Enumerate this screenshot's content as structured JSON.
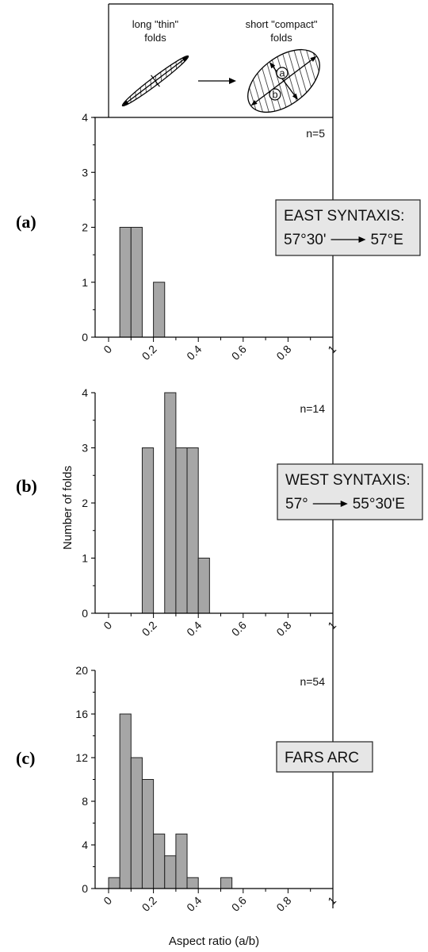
{
  "y_axis_title": "Number of folds",
  "x_axis_title": "Aspect ratio (a/b)",
  "inset": {
    "left_label_line1": "long \"thin\"",
    "left_label_line2": "folds",
    "right_label_line1": "short \"compact\"",
    "right_label_line2": "folds",
    "marker_a": "a",
    "marker_b": "b"
  },
  "chart_data": [
    {
      "type": "bar",
      "panel_label": "(a)",
      "n_label": "n=5",
      "region_line1": "EAST SYNTAXIS:",
      "region_from": "57°30'",
      "region_to": "57°E",
      "bin_width": 0.05,
      "bins": [
        {
          "x0": 0.05,
          "count": 2
        },
        {
          "x0": 0.1,
          "count": 2
        },
        {
          "x0": 0.15,
          "count": 0
        },
        {
          "x0": 0.2,
          "count": 1
        }
      ],
      "xlim": [
        0,
        1
      ],
      "ylim": [
        0,
        4
      ],
      "yticks": [
        0,
        1,
        2,
        3,
        4
      ],
      "xticks": [
        "0",
        "0.2",
        "0.4",
        "0.6",
        "0.8",
        "1"
      ]
    },
    {
      "type": "bar",
      "panel_label": "(b)",
      "n_label": "n=14",
      "region_line1": "WEST SYNTAXIS:",
      "region_from": "57°",
      "region_to": "55°30'E",
      "bin_width": 0.05,
      "bins": [
        {
          "x0": 0.15,
          "count": 3
        },
        {
          "x0": 0.2,
          "count": 0
        },
        {
          "x0": 0.25,
          "count": 4
        },
        {
          "x0": 0.3,
          "count": 3
        },
        {
          "x0": 0.35,
          "count": 3
        },
        {
          "x0": 0.4,
          "count": 1
        }
      ],
      "xlim": [
        0,
        1
      ],
      "ylim": [
        0,
        4
      ],
      "yticks": [
        0,
        1,
        2,
        3,
        4
      ],
      "xticks": [
        "0",
        "0.2",
        "0.4",
        "0.6",
        "0.8",
        "1"
      ]
    },
    {
      "type": "bar",
      "panel_label": "(c)",
      "n_label": "n=54",
      "region_line1": "FARS ARC",
      "bin_width": 0.05,
      "bins": [
        {
          "x0": 0.0,
          "count": 1
        },
        {
          "x0": 0.05,
          "count": 16
        },
        {
          "x0": 0.1,
          "count": 12
        },
        {
          "x0": 0.15,
          "count": 10
        },
        {
          "x0": 0.2,
          "count": 5
        },
        {
          "x0": 0.25,
          "count": 3
        },
        {
          "x0": 0.3,
          "count": 5
        },
        {
          "x0": 0.35,
          "count": 1
        },
        {
          "x0": 0.4,
          "count": 0
        },
        {
          "x0": 0.45,
          "count": 0
        },
        {
          "x0": 0.5,
          "count": 1
        }
      ],
      "xlim": [
        0,
        1
      ],
      "ylim": [
        0,
        20
      ],
      "yticks": [
        0,
        4,
        8,
        12,
        16,
        20
      ],
      "xticks": [
        "0",
        "0.2",
        "0.4",
        "0.6",
        "0.8",
        "1"
      ]
    }
  ]
}
